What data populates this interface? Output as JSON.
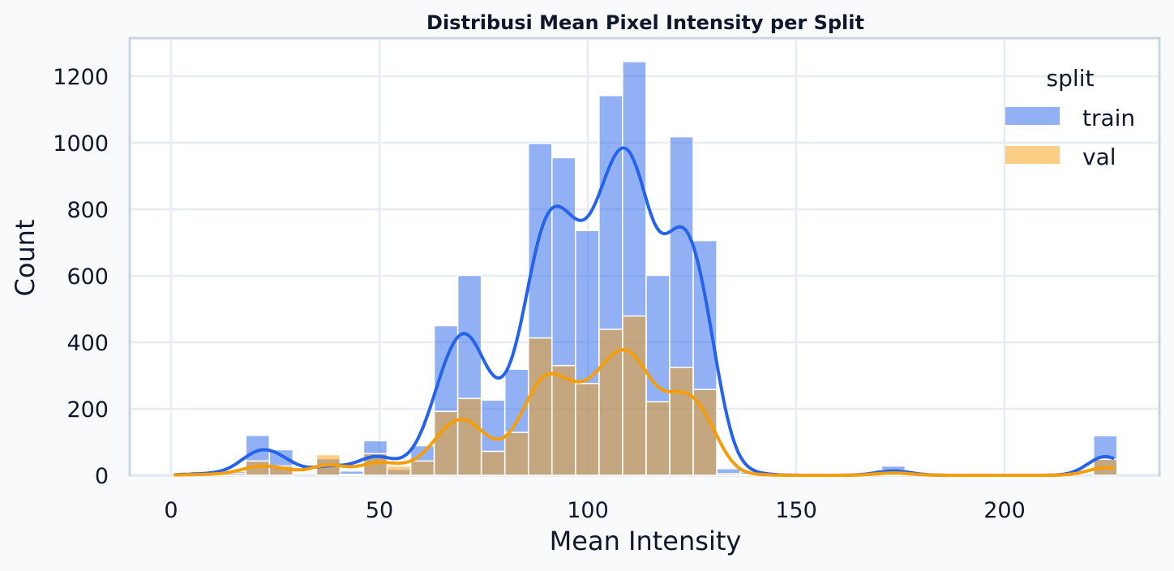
{
  "chart_data": {
    "type": "bar",
    "title": "Distribusi Mean Pixel Intensity per Split",
    "xlabel": "Mean Intensity",
    "ylabel": "Count",
    "xlim": [
      -10,
      238
    ],
    "ylim": [
      0,
      1310
    ],
    "xticks": [
      0,
      50,
      100,
      150,
      200
    ],
    "yticks": [
      0,
      200,
      400,
      600,
      800,
      1000,
      1200
    ],
    "grid": true,
    "bin_start": 1,
    "bin_width": 5.65,
    "legend": {
      "title": "split",
      "placement": "top-right"
    },
    "kde": true,
    "series": [
      {
        "name": "train",
        "color": "#2563eb",
        "values": [
          4,
          6,
          12,
          120,
          77,
          0,
          50,
          13,
          104,
          18,
          89,
          450,
          601,
          226,
          319,
          998,
          955,
          736,
          1142,
          1244,
          601,
          1018,
          706,
          20,
          10,
          0,
          0,
          0,
          0,
          0,
          28,
          0,
          0,
          0,
          0,
          0,
          0,
          0,
          0,
          119
        ]
      },
      {
        "name": "val",
        "color": "#f59e0b",
        "values": [
          2,
          3,
          6,
          43,
          28,
          0,
          62,
          3,
          65,
          28,
          43,
          192,
          231,
          72,
          129,
          413,
          330,
          276,
          439,
          479,
          221,
          324,
          258,
          5,
          3,
          0,
          0,
          0,
          0,
          0,
          15,
          0,
          0,
          0,
          0,
          0,
          0,
          0,
          0,
          48
        ]
      }
    ]
  }
}
